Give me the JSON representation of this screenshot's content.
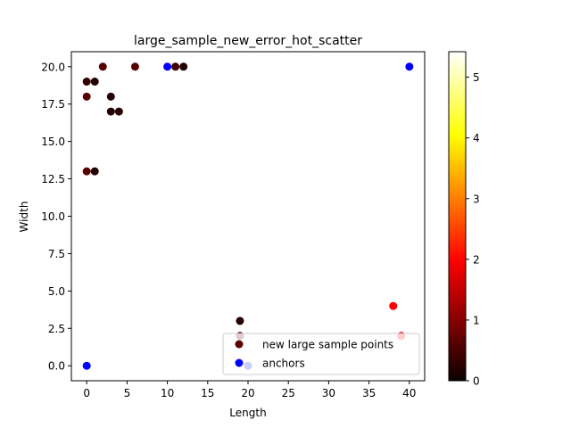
{
  "chart_data": {
    "type": "scatter",
    "title": "large_sample_new_error_hot_scatter",
    "xlabel": "Length",
    "ylabel": "Width",
    "xlim": [
      -1.9,
      41.9
    ],
    "ylim": [
      -1.0,
      21.0
    ],
    "xticks": [
      0,
      5,
      10,
      15,
      20,
      25,
      30,
      35,
      40
    ],
    "xtick_labels": [
      "0",
      "5",
      "10",
      "15",
      "20",
      "25",
      "30",
      "35",
      "40"
    ],
    "yticks": [
      0.0,
      2.5,
      5.0,
      7.5,
      10.0,
      12.5,
      15.0,
      17.5,
      20.0
    ],
    "ytick_labels": [
      "0.0",
      "2.5",
      "5.0",
      "7.5",
      "10.0",
      "12.5",
      "15.0",
      "17.5",
      "20.0"
    ],
    "colormap": "hot",
    "colorbar": {
      "range": [
        0,
        5.42
      ],
      "ticks": [
        0,
        1,
        2,
        3,
        4,
        5
      ],
      "tick_labels": [
        "0",
        "1",
        "2",
        "3",
        "4",
        "5"
      ]
    },
    "legend": {
      "placement": "lower right"
    },
    "series": [
      {
        "name": "new large sample points",
        "legend_color": "#5a0000",
        "points": [
          {
            "x": 0,
            "y": 19,
            "c": 0.3
          },
          {
            "x": 1,
            "y": 19,
            "c": 0.2
          },
          {
            "x": 2,
            "y": 20,
            "c": 0.6
          },
          {
            "x": 6,
            "y": 20,
            "c": 0.6
          },
          {
            "x": 0,
            "y": 18,
            "c": 0.6
          },
          {
            "x": 3,
            "y": 18,
            "c": 0.2
          },
          {
            "x": 3,
            "y": 17,
            "c": 0.2
          },
          {
            "x": 4,
            "y": 17,
            "c": 0.2
          },
          {
            "x": 0,
            "y": 13,
            "c": 0.6
          },
          {
            "x": 1,
            "y": 13,
            "c": 0.2
          },
          {
            "x": 11,
            "y": 20,
            "c": 0.4
          },
          {
            "x": 12,
            "y": 20,
            "c": 0.2
          },
          {
            "x": 19,
            "y": 3,
            "c": 0.2
          },
          {
            "x": 19,
            "y": 2,
            "c": 0.6
          },
          {
            "x": 38,
            "y": 4,
            "c": 1.9
          },
          {
            "x": 39,
            "y": 2,
            "c": 1.8
          },
          {
            "x": 32,
            "y": 1,
            "c": 5.3
          },
          {
            "x": 37,
            "y": 1,
            "c": 5.3
          },
          {
            "x": 40,
            "y": 1,
            "c": 5.3
          },
          {
            "x": 35,
            "y": 0,
            "c": 5.3
          },
          {
            "x": 40,
            "y": 0,
            "c": 5.3
          },
          {
            "x": 20,
            "y": 0,
            "c": 5.3
          }
        ]
      },
      {
        "name": "anchors",
        "legend_color": "#0000ff",
        "color": "#0000ff",
        "points": [
          {
            "x": 0,
            "y": 0
          },
          {
            "x": 10,
            "y": 20
          },
          {
            "x": 40,
            "y": 20
          },
          {
            "x": 20,
            "y": 0
          }
        ]
      }
    ]
  }
}
